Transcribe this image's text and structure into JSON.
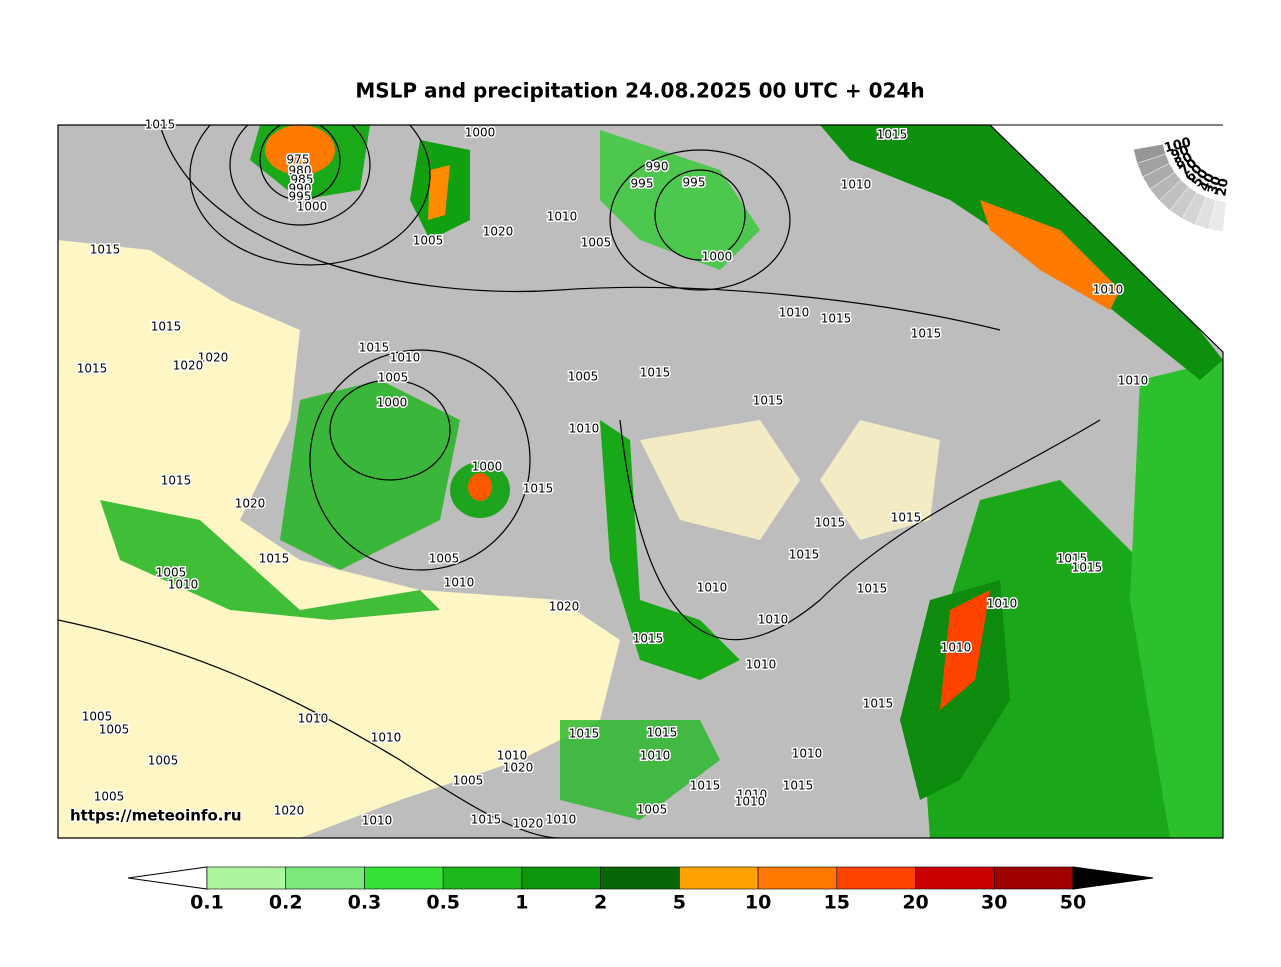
{
  "title": "MSLP and precipitation 24.08.2025 00 UTC + 024h",
  "watermark": "https://meteoinfo.ru",
  "isobar_labels": [
    1015,
    1000,
    1015,
    975,
    980,
    985,
    990,
    995,
    1000,
    990,
    995,
    995,
    1010,
    1010,
    1020,
    1005,
    1005,
    1000,
    1015,
    1010,
    1010,
    1015,
    1015,
    1015,
    1015,
    1010,
    1020,
    1020,
    1015,
    1005,
    1005,
    1015,
    1010,
    1000,
    1015,
    1010,
    1000,
    1015,
    1015,
    1020,
    1015,
    1015,
    1015,
    1005,
    1015,
    1015,
    1015,
    1005,
    1010,
    1010,
    1010,
    1015,
    1010,
    1020,
    1010,
    1015,
    1010,
    1010,
    1015,
    1005,
    1005,
    1010,
    1010,
    1015,
    1015,
    1010,
    1010,
    1010,
    1020,
    1005,
    1005,
    1015,
    1015,
    1010,
    1010,
    1005,
    1020,
    1005,
    1010,
    1015,
    1020,
    1010
  ],
  "precip_colorbar": {
    "ticks": [
      0.1,
      0.2,
      0.3,
      0.5,
      1,
      2,
      5,
      10,
      15,
      20,
      30,
      50
    ],
    "colors": [
      "#aef5a0",
      "#7ae87a",
      "#36e036",
      "#1cb91c",
      "#0c960c",
      "#056605",
      "#ffa200",
      "#ff7800",
      "#ff4400",
      "#cc0000",
      "#a00000"
    ]
  },
  "cloud_scale": {
    "ticks": [
      100,
      90,
      80,
      70,
      60,
      50,
      40,
      30,
      20
    ]
  }
}
